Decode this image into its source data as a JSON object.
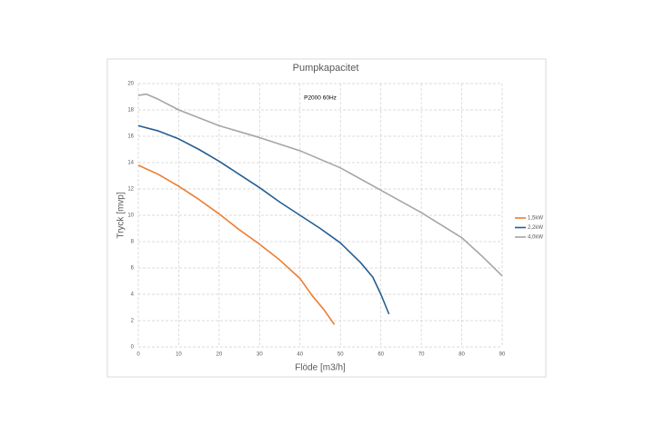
{
  "chart_data": {
    "type": "line",
    "title": "Pumpkapacitet",
    "annotation": "P2000 60Hz",
    "x_label": "Flöde [m3/h]",
    "y_label": "Tryck [mvp]",
    "xlim": [
      0,
      90
    ],
    "xticks": [
      0,
      10,
      20,
      30,
      40,
      50,
      60,
      70,
      80,
      90
    ],
    "ylim": [
      0,
      20
    ],
    "yticks": [
      0,
      2,
      4,
      6,
      8,
      10,
      12,
      14,
      16,
      18,
      20
    ],
    "grid": true,
    "legend": "right",
    "series": [
      {
        "name": "1,5kW",
        "color": "#ed7d31",
        "x": [
          0,
          5,
          10,
          15,
          20,
          25,
          30,
          35,
          40,
          43,
          46,
          48.5
        ],
        "values": [
          13.8,
          13.1,
          12.2,
          11.2,
          10.1,
          8.9,
          7.8,
          6.6,
          5.2,
          3.9,
          2.8,
          1.7
        ]
      },
      {
        "name": "2,2kW",
        "color": "#255e91",
        "x": [
          0,
          5,
          10,
          15,
          20,
          25,
          30,
          35,
          40,
          45,
          50,
          55,
          58,
          60,
          62
        ],
        "values": [
          16.8,
          16.4,
          15.8,
          15.0,
          14.1,
          13.1,
          12.1,
          11.0,
          10.0,
          9.0,
          7.9,
          6.4,
          5.3,
          4.0,
          2.5
        ]
      },
      {
        "name": "4,0kW",
        "color": "#a5a5a5",
        "x": [
          0,
          2,
          5,
          10,
          20,
          30,
          40,
          50,
          60,
          70,
          80,
          85,
          90
        ],
        "values": [
          19.1,
          19.2,
          18.8,
          18.0,
          16.8,
          15.9,
          14.9,
          13.6,
          11.9,
          10.2,
          8.3,
          6.9,
          5.4
        ]
      }
    ]
  }
}
